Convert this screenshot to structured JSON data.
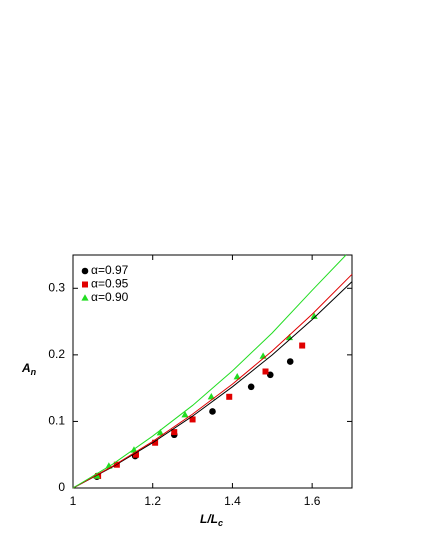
{
  "chart_data": {
    "type": "scatter",
    "xlabel": "L/L",
    "xlabel_sub": "c",
    "ylabel": "A",
    "ylabel_sub": "n",
    "xlim": [
      1,
      1.7
    ],
    "ylim": [
      0,
      0.35
    ],
    "xticks": [
      1,
      1.2,
      1.4,
      1.6
    ],
    "yticks": [
      0,
      0.1,
      0.2,
      0.3
    ],
    "legend": "upper-left",
    "series": [
      {
        "name": "α=0.97",
        "color": "#000000",
        "marker": "circle",
        "x": [
          1.06,
          1.156,
          1.254,
          1.35,
          1.447,
          1.495,
          1.545
        ],
        "values": [
          0.017,
          0.048,
          0.08,
          0.115,
          0.152,
          0.17,
          0.19
        ]
      },
      {
        "name": "α=0.95",
        "color": "#e00000",
        "marker": "square",
        "x": [
          1.063,
          1.11,
          1.158,
          1.206,
          1.254,
          1.3,
          1.392,
          1.483,
          1.575
        ],
        "values": [
          0.018,
          0.035,
          0.05,
          0.068,
          0.084,
          0.103,
          0.137,
          0.175,
          0.214
        ]
      },
      {
        "name": "α=0.90",
        "color": "#22dd22",
        "marker": "triangle",
        "x": [
          1.06,
          1.09,
          1.153,
          1.219,
          1.281,
          1.347,
          1.412,
          1.477,
          1.543,
          1.605
        ],
        "values": [
          0.018,
          0.033,
          0.057,
          0.083,
          0.11,
          0.137,
          0.167,
          0.198,
          0.226,
          0.258
        ]
      },
      {
        "color": "#000000",
        "marker": "line",
        "x": [
          1,
          1.1,
          1.2,
          1.3,
          1.4,
          1.5,
          1.6,
          1.7
        ],
        "values": [
          0,
          0.032,
          0.068,
          0.108,
          0.152,
          0.2,
          0.253,
          0.31
        ]
      },
      {
        "color": "#e00000",
        "marker": "line",
        "x": [
          1,
          1.1,
          1.2,
          1.3,
          1.4,
          1.5,
          1.6,
          1.7
        ],
        "values": [
          0,
          0.033,
          0.07,
          0.111,
          0.156,
          0.206,
          0.261,
          0.321
        ]
      },
      {
        "color": "#22dd22",
        "marker": "line",
        "x": [
          1,
          1.1,
          1.2,
          1.3,
          1.4,
          1.5,
          1.6,
          1.685
        ],
        "values": [
          0,
          0.036,
          0.078,
          0.124,
          0.176,
          0.233,
          0.297,
          0.35
        ]
      }
    ]
  }
}
